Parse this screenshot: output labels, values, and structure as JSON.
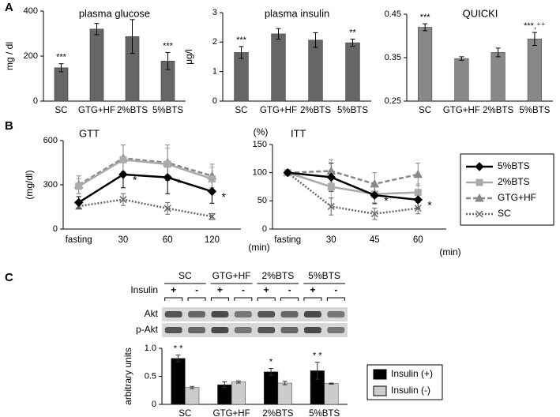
{
  "panel_labels": [
    "A",
    "B",
    "C"
  ],
  "chart_data": [
    {
      "type": "bar",
      "title": "plasma glucose",
      "ylabel": "mg / dl",
      "categories": [
        "SC",
        "GTG+HF",
        "2%BTS",
        "5%BTS"
      ],
      "values": [
        148,
        320,
        287,
        178
      ],
      "errors": [
        18,
        25,
        75,
        38
      ],
      "significance": [
        "***",
        null,
        null,
        "***"
      ],
      "color": "#666666",
      "ylim": [
        0,
        400
      ],
      "yticks": [
        0,
        200,
        400
      ]
    },
    {
      "type": "bar",
      "title": "plasma insulin",
      "ylabel": "μg/l",
      "categories": [
        "SC",
        "GTG+HF",
        "2%BTS",
        "5%BTS"
      ],
      "values": [
        1.65,
        2.28,
        2.07,
        1.98
      ],
      "errors": [
        0.2,
        0.18,
        0.25,
        0.12
      ],
      "significance": [
        "***",
        null,
        null,
        "**"
      ],
      "color": "#666666",
      "ylim": [
        0,
        3
      ],
      "yticks": [
        0,
        1,
        2,
        3
      ]
    },
    {
      "type": "bar",
      "title": "QUICKI",
      "categories": [
        "SC",
        "GTG+HF",
        "2%BTS",
        "5%BTS"
      ],
      "values": [
        0.42,
        0.348,
        0.362,
        0.393
      ],
      "errors": [
        0.008,
        0.004,
        0.01,
        0.015
      ],
      "significance": [
        "***",
        null,
        null,
        "***,⁺⁺"
      ],
      "color": "#888888",
      "ylim": [
        0.25,
        0.45
      ],
      "yticks": [
        0.25,
        0.35,
        0.45
      ]
    },
    {
      "type": "line",
      "title": "GTT",
      "ylabel": "(mg/dl)",
      "xlabel": "(min)",
      "categories": [
        "fasting",
        "30",
        "60",
        "120"
      ],
      "ylim": [
        0,
        600
      ],
      "yticks": [
        0,
        300,
        600
      ],
      "series": [
        {
          "color": "#000000",
          "marker": "diamond",
          "dash": "solid",
          "values": [
            180,
            370,
            350,
            255
          ],
          "errors": [
            40,
            90,
            110,
            80
          ],
          "significance": [
            null,
            "*",
            "*",
            "*"
          ]
        },
        {
          "color": "#aaaaaa",
          "marker": "square",
          "dash": "solid",
          "values": [
            290,
            470,
            440,
            340
          ],
          "errors": [
            50,
            100,
            110,
            80
          ]
        },
        {
          "color": "#888888",
          "marker": "triangle",
          "dash": "dashed",
          "values": [
            300,
            480,
            450,
            360
          ],
          "errors": [
            60,
            90,
            120,
            80
          ]
        },
        {
          "color": "#666666",
          "marker": "x",
          "dash": "dotted",
          "values": [
            155,
            200,
            140,
            85
          ],
          "errors": [
            20,
            40,
            40,
            20
          ]
        }
      ]
    },
    {
      "type": "line",
      "title": "ITT",
      "ylabel": "(%)",
      "xlabel": "(min)",
      "categories": [
        "fasting",
        "30",
        "45",
        "60"
      ],
      "ylim": [
        0,
        150
      ],
      "yticks": [
        0,
        50,
        100,
        150
      ],
      "series": [
        {
          "name": "5%BTS",
          "color": "#000000",
          "marker": "diamond",
          "dash": "solid",
          "values": [
            100,
            92,
            60,
            52
          ],
          "errors": [
            5,
            25,
            15,
            15
          ],
          "significance": [
            null,
            null,
            "*",
            "*"
          ]
        },
        {
          "name": "2%BTS",
          "color": "#aaaaaa",
          "marker": "square",
          "dash": "solid",
          "values": [
            100,
            75,
            62,
            65
          ],
          "errors": [
            5,
            20,
            15,
            15
          ]
        },
        {
          "name": "GTG+HF",
          "color": "#888888",
          "marker": "triangle",
          "dash": "dashed",
          "values": [
            100,
            103,
            80,
            97
          ],
          "errors": [
            5,
            20,
            20,
            20
          ]
        },
        {
          "name": "SC",
          "color": "#666666",
          "marker": "x",
          "dash": "dotted",
          "values": [
            100,
            40,
            27,
            37
          ],
          "errors": [
            5,
            15,
            10,
            10
          ]
        }
      ]
    },
    {
      "type": "bar",
      "ylabel": "arbitrary units",
      "categories": [
        "SC",
        "GTG+HF",
        "2%BTS",
        "5%BTS"
      ],
      "ylim": [
        0,
        1
      ],
      "yticks": [
        0,
        0.5,
        {
          "value": 1,
          "label": "1.0"
        }
      ],
      "series": [
        {
          "name": "Insulin (+)",
          "color": "#000000",
          "values": [
            0.82,
            0.35,
            0.58,
            0.6
          ],
          "errors": [
            0.06,
            0.05,
            0.06,
            0.15
          ],
          "significance": [
            "* *",
            null,
            "*",
            "* *"
          ]
        },
        {
          "name": "Insulin (-)",
          "color": "#cccccc",
          "values": [
            0.3,
            0.4,
            0.38,
            0.37
          ],
          "errors": [
            0.02,
            0.02,
            0.03,
            0.01
          ]
        }
      ],
      "blot": {
        "groups": [
          "SC",
          "GTG+HF",
          "2%BTS",
          "5%BTS"
        ],
        "insulin_label": "Insulin",
        "signs": [
          "+",
          "-"
        ],
        "rows": [
          "Akt",
          "p-Akt"
        ]
      }
    }
  ]
}
